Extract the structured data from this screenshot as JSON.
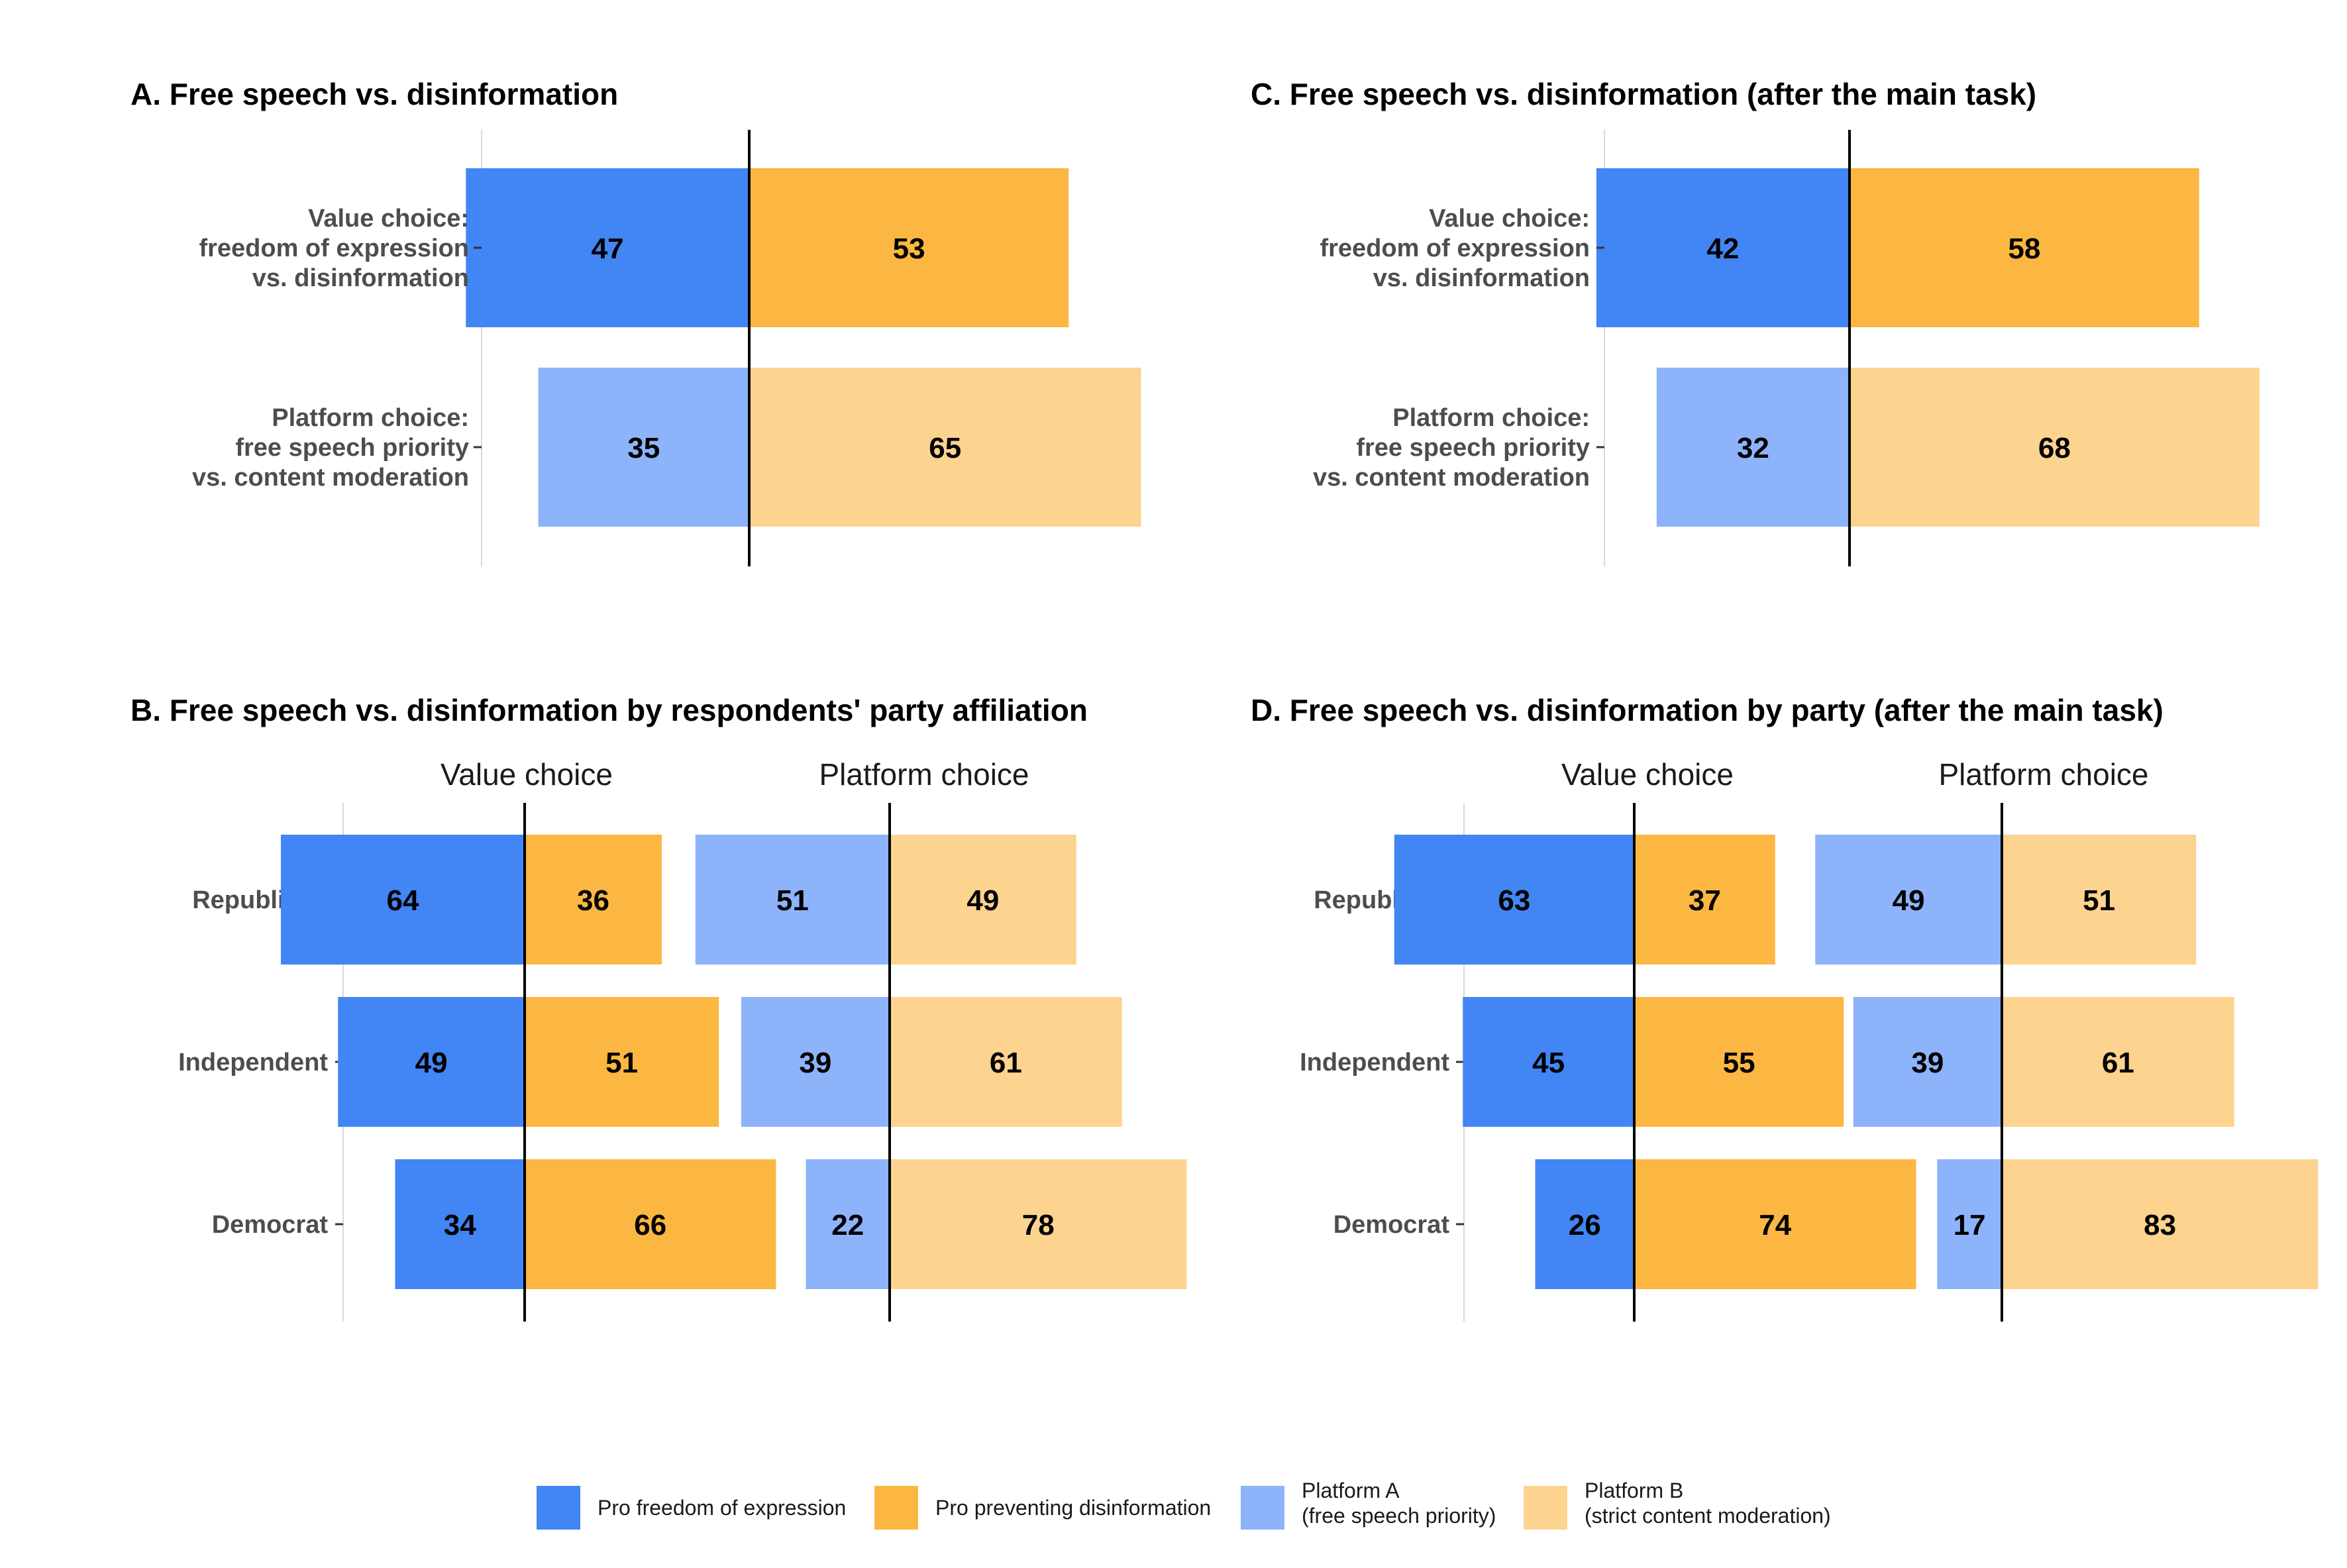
{
  "colors": {
    "pro_expression": "#4285F4",
    "pro_disinformation": "#FBB741",
    "platform_a": "#8DB3FA",
    "platform_b": "#FCD38F"
  },
  "chart_data": [
    {
      "id": "A",
      "type": "bar",
      "orientation": "horizontal-diverging",
      "title": "A. Free speech vs. disinformation",
      "categories": [
        [
          "Value choice:",
          "freedom of expression",
          "vs. disinformation"
        ],
        [
          "Platform choice:",
          "free speech priority",
          "vs. content moderation"
        ]
      ],
      "series": [
        {
          "name": "Pro freedom of expression / Platform A",
          "values": [
            47,
            35
          ]
        },
        {
          "name": "Pro preventing disinformation / Platform B",
          "values": [
            53,
            65
          ]
        }
      ]
    },
    {
      "id": "C",
      "type": "bar",
      "orientation": "horizontal-diverging",
      "title": "C. Free speech vs. disinformation (after the main task)",
      "categories": [
        [
          "Value choice:",
          "freedom of expression",
          "vs. disinformation"
        ],
        [
          "Platform choice:",
          "free speech priority",
          "vs. content moderation"
        ]
      ],
      "series": [
        {
          "name": "Pro freedom of expression / Platform A",
          "values": [
            42,
            32
          ]
        },
        {
          "name": "Pro preventing disinformation / Platform B",
          "values": [
            58,
            68
          ]
        }
      ]
    },
    {
      "id": "B",
      "type": "bar",
      "orientation": "horizontal-diverging",
      "title": "B. Free speech vs. disinformation by respondents' party affiliation",
      "categories": [
        "Republican",
        "Independent",
        "Democrat"
      ],
      "facets": [
        {
          "title": "Value choice",
          "series": [
            {
              "name": "Pro freedom of expression",
              "values": [
                64,
                49,
                34
              ]
            },
            {
              "name": "Pro preventing disinformation",
              "values": [
                36,
                51,
                66
              ]
            }
          ]
        },
        {
          "title": "Platform choice",
          "series": [
            {
              "name": "Platform A (free speech priority)",
              "values": [
                51,
                39,
                22
              ]
            },
            {
              "name": "Platform B (strict content moderation)",
              "values": [
                49,
                61,
                78
              ]
            }
          ]
        }
      ]
    },
    {
      "id": "D",
      "type": "bar",
      "orientation": "horizontal-diverging",
      "title": "D. Free speech vs. disinformation by party (after the main task)",
      "categories": [
        "Republican",
        "Independent",
        "Democrat"
      ],
      "facets": [
        {
          "title": "Value choice",
          "series": [
            {
              "name": "Pro freedom of expression",
              "values": [
                63,
                45,
                26
              ]
            },
            {
              "name": "Pro preventing disinformation",
              "values": [
                37,
                55,
                74
              ]
            }
          ]
        },
        {
          "title": "Platform choice",
          "series": [
            {
              "name": "Platform A (free speech priority)",
              "values": [
                49,
                39,
                17
              ]
            },
            {
              "name": "Platform B (strict content moderation)",
              "values": [
                51,
                61,
                83
              ]
            }
          ]
        }
      ]
    }
  ],
  "legend": [
    {
      "color_key": "pro_expression",
      "lines": [
        "Pro freedom of expression"
      ]
    },
    {
      "color_key": "pro_disinformation",
      "lines": [
        "Pro preventing disinformation"
      ]
    },
    {
      "color_key": "platform_a",
      "lines": [
        "Platform A",
        "(free speech priority)"
      ]
    },
    {
      "color_key": "platform_b",
      "lines": [
        "Platform B",
        "(strict content moderation)"
      ]
    }
  ]
}
